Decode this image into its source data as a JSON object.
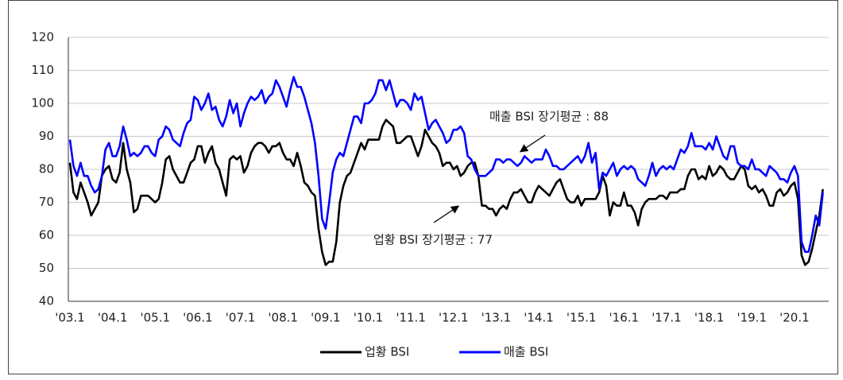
{
  "chart_data": {
    "type": "line",
    "categories": [
      "'03.1",
      null,
      null,
      null,
      null,
      null,
      null,
      null,
      null,
      null,
      null,
      null,
      "'04.1",
      null,
      null,
      null,
      null,
      null,
      null,
      null,
      null,
      null,
      null,
      null,
      "'05.1",
      null,
      null,
      null,
      null,
      null,
      null,
      null,
      null,
      null,
      null,
      null,
      "'06.1",
      null,
      null,
      null,
      null,
      null,
      null,
      null,
      null,
      null,
      null,
      null,
      "'07.1",
      null,
      null,
      null,
      null,
      null,
      null,
      null,
      null,
      null,
      null,
      null,
      "'08.1",
      null,
      null,
      null,
      null,
      null,
      null,
      null,
      null,
      null,
      null,
      null,
      "'09.1",
      null,
      null,
      null,
      null,
      null,
      null,
      null,
      null,
      null,
      null,
      null,
      "'10.1",
      null,
      null,
      null,
      null,
      null,
      null,
      null,
      null,
      null,
      null,
      null,
      "'11.1",
      null,
      null,
      null,
      null,
      null,
      null,
      null,
      null,
      null,
      null,
      null,
      "'12.1",
      null,
      null,
      null,
      null,
      null,
      null,
      null,
      null,
      null,
      null,
      null,
      "'13.1",
      null,
      null,
      null,
      null,
      null,
      null,
      null,
      null,
      null,
      null,
      null,
      "'14.1",
      null,
      null,
      null,
      null,
      null,
      null,
      null,
      null,
      null,
      null,
      null,
      "'15.1",
      null,
      null,
      null,
      null,
      null,
      null,
      null,
      null,
      null,
      null,
      null,
      "'16.1",
      null,
      null,
      null,
      null,
      null,
      null,
      null,
      null,
      null,
      null,
      null,
      "'17.1",
      null,
      null,
      null,
      null,
      null,
      null,
      null,
      null,
      null,
      null,
      null,
      "'18.1",
      null,
      null,
      null,
      null,
      null,
      null,
      null,
      null,
      null,
      null,
      null,
      "'19.1",
      null,
      null,
      null,
      null,
      null,
      null,
      null,
      null,
      null,
      null,
      null,
      "'20.1",
      null,
      null,
      null,
      null,
      null,
      null,
      null,
      null
    ],
    "series": [
      {
        "name": "업황 BSI",
        "color": "#000000",
        "values": [
          82,
          73,
          71,
          76,
          73,
          70,
          66,
          68,
          70,
          78,
          80,
          81,
          77,
          76,
          79,
          88,
          80,
          76,
          67,
          68,
          72,
          72,
          72,
          71,
          70,
          71,
          76,
          83,
          84,
          80,
          78,
          76,
          76,
          79,
          82,
          83,
          87,
          87,
          82,
          85,
          87,
          82,
          80,
          76,
          72,
          83,
          84,
          83,
          84,
          79,
          81,
          85,
          87,
          88,
          88,
          87,
          85,
          87,
          87,
          88,
          85,
          83,
          83,
          81,
          85,
          81,
          76,
          75,
          73,
          72,
          62,
          55,
          51,
          52,
          52,
          58,
          70,
          75,
          78,
          79,
          82,
          85,
          88,
          86,
          89,
          89,
          89,
          89,
          93,
          95,
          94,
          93,
          88,
          88,
          89,
          90,
          90,
          87,
          84,
          87,
          92,
          90,
          88,
          87,
          85,
          81,
          82,
          82,
          80,
          81,
          78,
          79,
          81,
          82,
          82,
          78,
          69,
          69,
          68,
          68,
          66,
          68,
          69,
          68,
          71,
          73,
          73,
          74,
          72,
          70,
          70,
          73,
          75,
          74,
          73,
          72,
          74,
          76,
          77,
          74,
          71,
          70,
          70,
          72,
          69,
          71,
          71,
          71,
          71,
          73,
          78,
          75,
          66,
          70,
          69,
          69,
          73,
          69,
          69,
          67,
          63,
          68,
          70,
          71,
          71,
          71,
          72,
          72,
          71,
          73,
          73,
          73,
          74,
          74,
          78,
          80,
          80,
          77,
          78,
          77,
          81,
          78,
          79,
          81,
          80,
          78,
          77,
          77,
          79,
          81,
          80,
          75,
          74,
          75,
          73,
          74,
          72,
          69,
          69,
          73,
          74,
          72,
          73,
          75,
          76,
          71,
          54,
          51,
          52,
          56,
          61,
          66,
          74
        ]
      },
      {
        "name": "매출 BSI",
        "color": "#0000ff",
        "values": [
          89,
          81,
          78,
          82,
          78,
          78,
          75,
          73,
          74,
          78,
          86,
          88,
          84,
          84,
          87,
          93,
          89,
          84,
          85,
          84,
          85,
          87,
          87,
          85,
          84,
          89,
          90,
          93,
          92,
          89,
          88,
          87,
          91,
          94,
          95,
          102,
          101,
          98,
          100,
          103,
          98,
          99,
          95,
          93,
          96,
          101,
          97,
          100,
          93,
          97,
          100,
          102,
          101,
          102,
          104,
          100,
          102,
          103,
          107,
          105,
          102,
          99,
          104,
          108,
          105,
          105,
          102,
          98,
          94,
          88,
          78,
          65,
          62,
          70,
          79,
          83,
          85,
          84,
          88,
          92,
          96,
          96,
          94,
          100,
          100,
          101,
          103,
          107,
          107,
          104,
          107,
          103,
          99,
          101,
          101,
          100,
          98,
          103,
          101,
          102,
          97,
          92,
          94,
          95,
          93,
          91,
          88,
          89,
          92,
          92,
          93,
          91,
          84,
          83,
          80,
          78,
          78,
          78,
          79,
          80,
          83,
          83,
          82,
          83,
          83,
          82,
          81,
          82,
          84,
          83,
          82,
          83,
          83,
          83,
          86,
          84,
          81,
          81,
          80,
          80,
          81,
          82,
          83,
          84,
          82,
          84,
          88,
          82,
          85,
          74,
          79,
          78,
          80,
          82,
          78,
          80,
          81,
          80,
          81,
          80,
          77,
          76,
          75,
          78,
          82,
          78,
          80,
          81,
          80,
          81,
          80,
          83,
          86,
          85,
          87,
          91,
          87,
          87,
          87,
          86,
          88,
          86,
          90,
          87,
          84,
          83,
          87,
          87,
          82,
          81,
          81,
          80,
          83,
          80,
          80,
          79,
          78,
          81,
          80,
          79,
          77,
          77,
          76,
          79,
          81,
          78,
          58,
          55,
          55,
          60,
          66,
          63,
          73
        ]
      }
    ],
    "ylim": [
      40,
      120
    ],
    "yticks": [
      40,
      50,
      60,
      70,
      80,
      90,
      100,
      110,
      120
    ],
    "grid": true,
    "annotations": [
      "매출 BSI 장기평균 : 88",
      "업황 BSI 장기평균 : 77"
    ],
    "legend": "bottom"
  }
}
